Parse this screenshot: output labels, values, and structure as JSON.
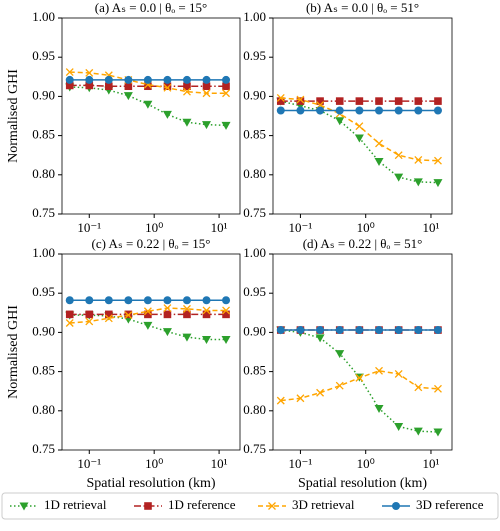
{
  "chart_data": [
    {
      "type": "line",
      "title": "(a) Aₛ = 0.0 | θₒ = 15°",
      "ylabel": "Normalised GHI",
      "xscale": "log",
      "legend": "bottom",
      "x": [
        0.05,
        0.1,
        0.2,
        0.4,
        0.8,
        1.6,
        3.2,
        6.4,
        12.8
      ],
      "xlim": [
        0.038,
        21
      ],
      "xticks": [
        {
          "value": 0.1,
          "label": "10⁻¹"
        },
        {
          "value": 1,
          "label": "10⁰"
        },
        {
          "value": 10,
          "label": "10¹"
        }
      ],
      "ylim": [
        0.75,
        1.0
      ],
      "yticks": [
        0.75,
        {
          "value": 0.8,
          "label": "0.80"
        },
        0.85,
        {
          "value": 0.9,
          "label": "0.90"
        },
        0.95,
        {
          "value": 1.0,
          "label": "1.00"
        }
      ],
      "series": [
        {
          "name": "1D retrieval",
          "color": "#2ca02c",
          "marker": "v",
          "linestyle": "dotted",
          "values": [
            0.912,
            0.911,
            0.908,
            0.901,
            0.89,
            0.877,
            0.867,
            0.864,
            0.863
          ]
        },
        {
          "name": "1D reference",
          "color": "#b22222",
          "marker": "s",
          "linestyle": "dashdot",
          "values": [
            0.914,
            0.914,
            0.913,
            0.913,
            0.913,
            0.913,
            0.913,
            0.913,
            0.913
          ]
        },
        {
          "name": "3D retrieval",
          "color": "#ffa500",
          "marker": "x",
          "linestyle": "dashed",
          "values": [
            0.931,
            0.93,
            0.927,
            0.921,
            0.915,
            0.911,
            0.906,
            0.904,
            0.904
          ]
        },
        {
          "name": "3D reference",
          "color": "#1f77b4",
          "marker": "o",
          "linestyle": "solid",
          "values": [
            0.921,
            0.921,
            0.921,
            0.921,
            0.921,
            0.921,
            0.921,
            0.921,
            0.921
          ]
        }
      ]
    },
    {
      "type": "line",
      "title": "(b) Aₛ = 0.0 | θₒ = 51°",
      "xscale": "log",
      "x": [
        0.05,
        0.1,
        0.2,
        0.4,
        0.8,
        1.6,
        3.2,
        6.4,
        12.8
      ],
      "xlim": [
        0.038,
        21
      ],
      "xticks": [
        {
          "value": 0.1,
          "label": "10⁻¹"
        },
        {
          "value": 1,
          "label": "10⁰"
        },
        {
          "value": 10,
          "label": "10¹"
        }
      ],
      "ylim": [
        0.75,
        1.0
      ],
      "yticks": [
        0.75,
        {
          "value": 0.8,
          "label": "0.80"
        },
        0.85,
        {
          "value": 0.9,
          "label": "0.90"
        },
        0.95,
        {
          "value": 1.0,
          "label": "1.00"
        }
      ],
      "series": [
        {
          "color": "#2ca02c",
          "marker": "v",
          "linestyle": "dotted",
          "values": [
            0.894,
            0.888,
            0.882,
            0.869,
            0.847,
            0.817,
            0.797,
            0.791,
            0.79
          ]
        },
        {
          "color": "#b22222",
          "marker": "s",
          "linestyle": "dashdot",
          "values": [
            0.894,
            0.894,
            0.894,
            0.894,
            0.894,
            0.894,
            0.894,
            0.894,
            0.894
          ]
        },
        {
          "color": "#ffa500",
          "marker": "x",
          "linestyle": "dashed",
          "values": [
            0.898,
            0.896,
            0.889,
            0.878,
            0.862,
            0.84,
            0.825,
            0.819,
            0.818
          ]
        },
        {
          "color": "#1f77b4",
          "marker": "o",
          "linestyle": "solid",
          "values": [
            0.882,
            0.882,
            0.882,
            0.882,
            0.882,
            0.882,
            0.882,
            0.882,
            0.882
          ]
        }
      ]
    },
    {
      "type": "line",
      "title": "(c) Aₛ = 0.22 | θₒ = 15°",
      "ylabel": "Normalised GHI",
      "xlabel": "Spatial resolution (km)",
      "xscale": "log",
      "x": [
        0.05,
        0.1,
        0.2,
        0.4,
        0.8,
        1.6,
        3.2,
        6.4,
        12.8
      ],
      "xlim": [
        0.038,
        21
      ],
      "xticks": [
        {
          "value": 0.1,
          "label": "10⁻¹"
        },
        {
          "value": 1,
          "label": "10⁰"
        },
        {
          "value": 10,
          "label": "10¹"
        }
      ],
      "ylim": [
        0.75,
        1.0
      ],
      "yticks": [
        0.75,
        {
          "value": 0.8,
          "label": "0.80"
        },
        0.85,
        {
          "value": 0.9,
          "label": "0.90"
        },
        0.95,
        {
          "value": 1.0,
          "label": "1.00"
        }
      ],
      "series": [
        {
          "color": "#2ca02c",
          "marker": "v",
          "linestyle": "dotted",
          "values": [
            0.922,
            0.922,
            0.921,
            0.917,
            0.909,
            0.901,
            0.894,
            0.891,
            0.891
          ]
        },
        {
          "color": "#b22222",
          "marker": "s",
          "linestyle": "dashdot",
          "values": [
            0.923,
            0.923,
            0.923,
            0.923,
            0.923,
            0.923,
            0.923,
            0.923,
            0.923
          ]
        },
        {
          "color": "#ffa500",
          "marker": "x",
          "linestyle": "dashed",
          "values": [
            0.912,
            0.914,
            0.918,
            0.922,
            0.927,
            0.931,
            0.93,
            0.928,
            0.928
          ]
        },
        {
          "color": "#1f77b4",
          "marker": "o",
          "linestyle": "solid",
          "values": [
            0.941,
            0.941,
            0.941,
            0.941,
            0.941,
            0.941,
            0.941,
            0.941,
            0.941
          ]
        }
      ]
    },
    {
      "type": "line",
      "title": "(d) Aₛ = 0.22 | θₒ = 51°",
      "xlabel": "Spatial resolution (km)",
      "xscale": "log",
      "x": [
        0.05,
        0.1,
        0.2,
        0.4,
        0.8,
        1.6,
        3.2,
        6.4,
        12.8
      ],
      "xlim": [
        0.038,
        21
      ],
      "xticks": [
        {
          "value": 0.1,
          "label": "10⁻¹"
        },
        {
          "value": 1,
          "label": "10⁰"
        },
        {
          "value": 10,
          "label": "10¹"
        }
      ],
      "ylim": [
        0.75,
        1.0
      ],
      "yticks": [
        0.75,
        {
          "value": 0.8,
          "label": "0.80"
        },
        0.85,
        {
          "value": 0.9,
          "label": "0.90"
        },
        0.95,
        {
          "value": 1.0,
          "label": "1.00"
        }
      ],
      "series": [
        {
          "color": "#2ca02c",
          "marker": "v",
          "linestyle": "dotted",
          "values": [
            0.903,
            0.9,
            0.893,
            0.873,
            0.843,
            0.803,
            0.78,
            0.774,
            0.773
          ]
        },
        {
          "color": "#b22222",
          "marker": "s",
          "linestyle": "dashdot",
          "values": [
            0.903,
            0.903,
            0.903,
            0.903,
            0.903,
            0.903,
            0.903,
            0.903,
            0.903
          ]
        },
        {
          "color": "#ffa500",
          "marker": "x",
          "linestyle": "dashed",
          "values": [
            0.813,
            0.816,
            0.823,
            0.832,
            0.842,
            0.851,
            0.847,
            0.83,
            0.828
          ]
        },
        {
          "color": "#1f77b4",
          "marker": "o",
          "linestyle": "solid",
          "values": [
            0.903,
            0.903,
            0.903,
            0.903,
            0.903,
            0.903,
            0.903,
            0.903,
            0.903
          ]
        }
      ]
    }
  ]
}
